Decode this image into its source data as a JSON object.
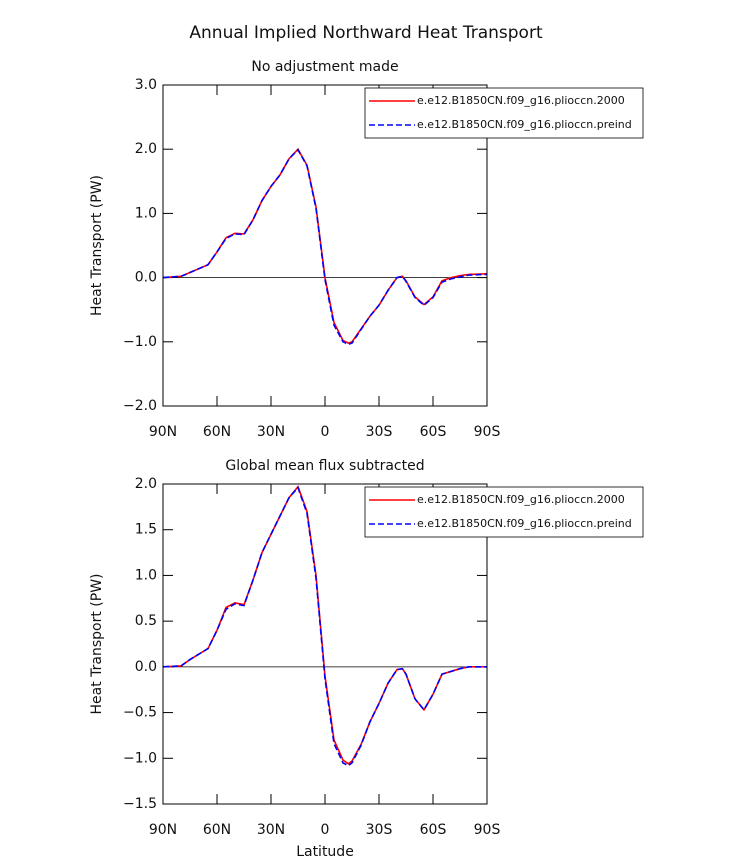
{
  "title": "Annual Implied Northward Heat Transport",
  "chart_data": [
    {
      "type": "line",
      "title": "No adjustment made",
      "ylabel": "Heat Transport (PW)",
      "x": [
        90,
        80,
        75,
        70,
        65,
        60,
        55,
        50,
        45,
        40,
        35,
        30,
        25,
        20,
        15,
        10,
        5,
        0,
        -5,
        -10,
        -13,
        -15,
        -20,
        -25,
        -30,
        -35,
        -40,
        -43,
        -45,
        -50,
        -55,
        -60,
        -65,
        -70,
        -75,
        -80,
        -90
      ],
      "series": [
        {
          "name": "e.e12.B1850CN.f09_g16.plioccn.2000",
          "color": "#ff0000",
          "linestyle": "solid",
          "values": [
            0.0,
            0.02,
            0.08,
            0.14,
            0.2,
            0.4,
            0.62,
            0.69,
            0.68,
            0.9,
            1.2,
            1.42,
            1.6,
            1.85,
            2.0,
            1.75,
            1.1,
            0.0,
            -0.7,
            -0.98,
            -1.02,
            -1.0,
            -0.8,
            -0.6,
            -0.43,
            -0.2,
            0.0,
            0.02,
            -0.05,
            -0.3,
            -0.42,
            -0.3,
            -0.05,
            0.0,
            0.03,
            0.05,
            0.06
          ]
        },
        {
          "name": "e.e12.B1850CN.f09_g16.plioccn.preind",
          "color": "#0000ff",
          "linestyle": "dashed",
          "values": [
            0.0,
            0.02,
            0.08,
            0.14,
            0.2,
            0.4,
            0.61,
            0.68,
            0.67,
            0.9,
            1.2,
            1.42,
            1.6,
            1.85,
            1.99,
            1.74,
            1.08,
            -0.03,
            -0.74,
            -1.0,
            -1.04,
            -1.02,
            -0.81,
            -0.6,
            -0.43,
            -0.2,
            0.0,
            0.02,
            -0.06,
            -0.31,
            -0.43,
            -0.31,
            -0.07,
            -0.02,
            0.01,
            0.04,
            0.05
          ]
        }
      ],
      "xlim": [
        90,
        -90
      ],
      "xticks": [
        {
          "value": 90,
          "label": "90N"
        },
        {
          "value": 60,
          "label": "60N"
        },
        {
          "value": 30,
          "label": "30N"
        },
        0,
        {
          "value": -30,
          "label": "30S"
        },
        {
          "value": -60,
          "label": "60S"
        },
        {
          "value": -90,
          "label": "90S"
        }
      ],
      "ylim": [
        -2,
        3
      ],
      "yticks": [
        {
          "value": 3,
          "label": "3.0"
        },
        {
          "value": 2,
          "label": "2.0"
        },
        {
          "value": 1,
          "label": "1.0"
        },
        {
          "value": 0,
          "label": "0.0"
        },
        {
          "value": -1,
          "label": "−1.0"
        },
        {
          "value": -2,
          "label": "−2.0"
        }
      ],
      "legend": "top-right"
    },
    {
      "type": "line",
      "title": "Global mean flux subtracted",
      "ylabel": "Heat Transport (PW)",
      "xlabel": "Latitude",
      "x": [
        90,
        80,
        75,
        70,
        65,
        60,
        55,
        50,
        45,
        40,
        35,
        30,
        25,
        20,
        15,
        10,
        5,
        0,
        -5,
        -10,
        -13,
        -15,
        -20,
        -25,
        -30,
        -35,
        -40,
        -43,
        -45,
        -50,
        -55,
        -60,
        -65,
        -70,
        -75,
        -80,
        -90
      ],
      "series": [
        {
          "name": "e.e12.B1850CN.f09_g16.plioccn.2000",
          "color": "#ff0000",
          "linestyle": "solid",
          "values": [
            0.0,
            0.01,
            0.08,
            0.14,
            0.2,
            0.4,
            0.65,
            0.7,
            0.68,
            0.95,
            1.25,
            1.45,
            1.65,
            1.85,
            1.97,
            1.7,
            1.0,
            -0.1,
            -0.8,
            -1.02,
            -1.06,
            -1.03,
            -0.85,
            -0.6,
            -0.4,
            -0.18,
            -0.03,
            -0.02,
            -0.08,
            -0.35,
            -0.47,
            -0.3,
            -0.08,
            -0.05,
            -0.02,
            0.0,
            0.0
          ]
        },
        {
          "name": "e.e12.B1850CN.f09_g16.plioccn.preind",
          "color": "#0000ff",
          "linestyle": "dashed",
          "values": [
            0.0,
            0.01,
            0.08,
            0.14,
            0.2,
            0.4,
            0.63,
            0.69,
            0.67,
            0.95,
            1.25,
            1.45,
            1.65,
            1.85,
            1.96,
            1.68,
            0.97,
            -0.13,
            -0.84,
            -1.05,
            -1.08,
            -1.05,
            -0.86,
            -0.6,
            -0.4,
            -0.18,
            -0.03,
            -0.02,
            -0.08,
            -0.35,
            -0.47,
            -0.3,
            -0.08,
            -0.05,
            -0.02,
            0.0,
            0.0
          ]
        }
      ],
      "xlim": [
        90,
        -90
      ],
      "xticks": [
        {
          "value": 90,
          "label": "90N"
        },
        {
          "value": 60,
          "label": "60N"
        },
        {
          "value": 30,
          "label": "30N"
        },
        0,
        {
          "value": -30,
          "label": "30S"
        },
        {
          "value": -60,
          "label": "60S"
        },
        {
          "value": -90,
          "label": "90S"
        }
      ],
      "ylim": [
        -1.5,
        2
      ],
      "yticks": [
        {
          "value": 2,
          "label": "2.0"
        },
        {
          "value": 1.5,
          "label": "1.5"
        },
        {
          "value": 1,
          "label": "1.0"
        },
        {
          "value": 0.5,
          "label": "0.5"
        },
        {
          "value": 0,
          "label": "0.0"
        },
        {
          "value": -0.5,
          "label": "−0.5"
        },
        {
          "value": -1,
          "label": "−1.0"
        },
        {
          "value": -1.5,
          "label": "−1.5"
        }
      ],
      "legend": "top-right"
    }
  ]
}
